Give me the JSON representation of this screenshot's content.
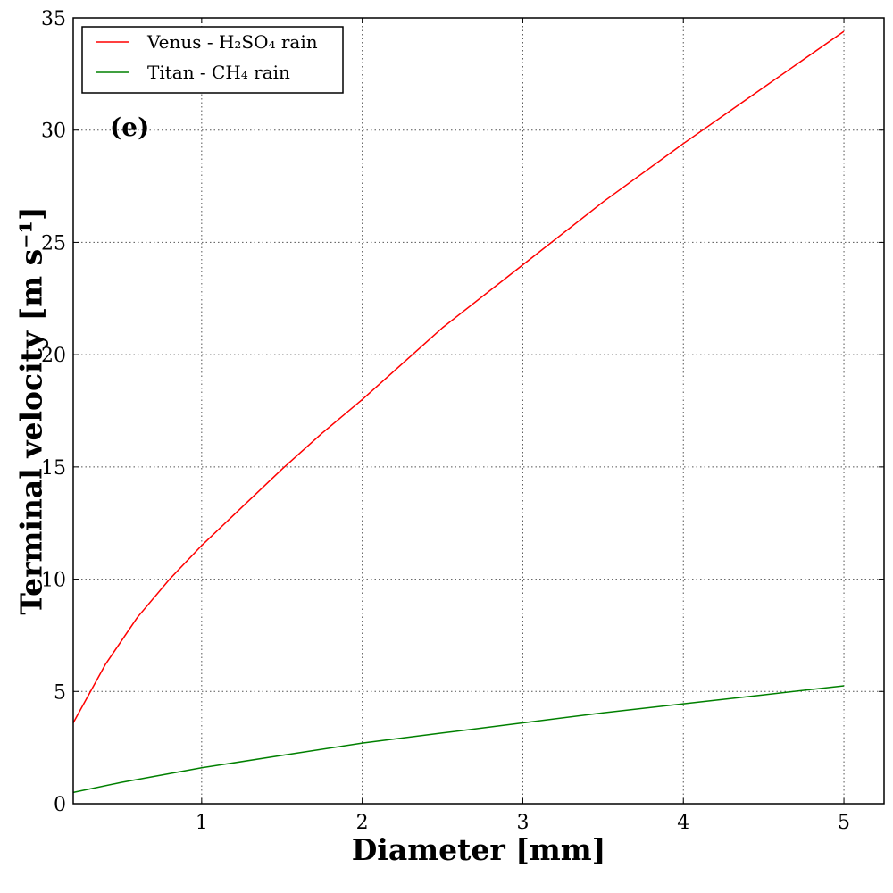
{
  "chart_data": {
    "type": "line",
    "xlabel": "Diameter [mm]",
    "ylabel": "Terminal velocity [m s⁻¹]",
    "xlim": [
      0.2,
      5.25
    ],
    "ylim": [
      0,
      35
    ],
    "xticks": [
      1,
      2,
      3,
      4,
      5
    ],
    "yticks": [
      0,
      5,
      10,
      15,
      20,
      25,
      30,
      35
    ],
    "grid": true,
    "legend_position": "top-left",
    "annotation": "(e)",
    "series": [
      {
        "name": "Venus - H₂SO₄ rain",
        "color": "#ff0000",
        "x": [
          0.2,
          0.4,
          0.6,
          0.8,
          1.0,
          1.25,
          1.5,
          1.75,
          2.0,
          2.5,
          3.0,
          3.5,
          4.0,
          4.5,
          5.0
        ],
        "y": [
          3.6,
          6.2,
          8.3,
          10.0,
          11.5,
          13.2,
          14.9,
          16.5,
          18.0,
          21.2,
          24.0,
          26.8,
          29.4,
          31.9,
          34.4
        ]
      },
      {
        "name": "Titan - CH₄ rain",
        "color": "#008000",
        "x": [
          0.2,
          0.5,
          1.0,
          1.5,
          2.0,
          2.5,
          3.0,
          3.5,
          4.0,
          4.5,
          5.0
        ],
        "y": [
          0.5,
          0.95,
          1.6,
          2.15,
          2.7,
          3.15,
          3.6,
          4.05,
          4.45,
          4.85,
          5.25
        ]
      }
    ]
  }
}
